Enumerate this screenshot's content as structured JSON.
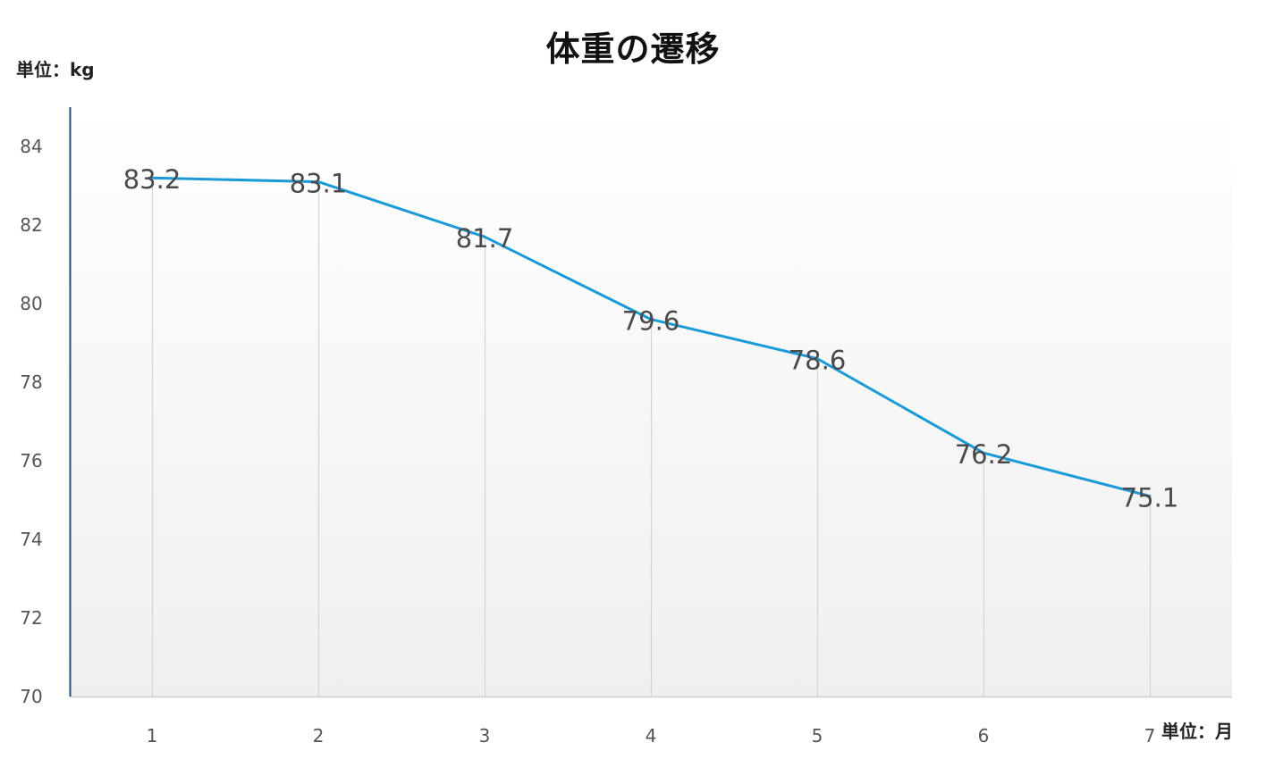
{
  "chart_data": {
    "type": "line",
    "title": "体重の遷移",
    "ylabel": "単位：kg",
    "xlabel": "単位：月",
    "x": [
      1,
      2,
      3,
      4,
      5,
      6,
      7
    ],
    "values": [
      83.2,
      83.1,
      81.7,
      79.6,
      78.6,
      76.2,
      75.1
    ],
    "data_labels": [
      "83.2",
      "83.1",
      "81.7",
      "79.6",
      "78.6",
      "76.2",
      "75.1"
    ],
    "ylim": [
      70,
      85
    ],
    "yticks": [
      70,
      72,
      74,
      76,
      78,
      80,
      82,
      84
    ],
    "grid": "vertical drop lines",
    "colors": {
      "line": "#1a9bd7",
      "drop_line": "#d4d4d4",
      "y_axis": "#1f4e79",
      "x_axis": "#cfcfcf",
      "bg_top": "#ffffff",
      "bg_bottom": "#efefef"
    }
  }
}
